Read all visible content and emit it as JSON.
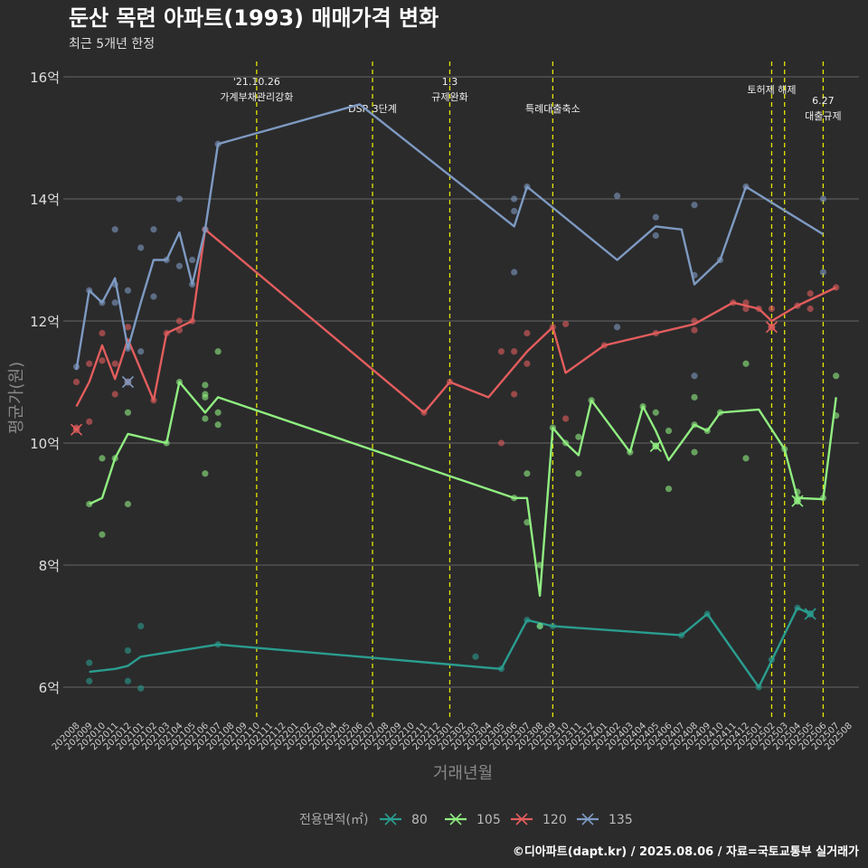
{
  "chart_data": {
    "type": "line",
    "title": "둔산 목련 아파트(1993) 매매가격 변화",
    "subtitle": "최근 5개년 한정",
    "xlabel": "거래년월",
    "ylabel": "평균가(원)",
    "caption": "©디아파트(dapt.kr) / 2025.08.06 / 자료=국토교통부 실거래가",
    "ylim": [
      5.5,
      16.2
    ],
    "y_ticks": [
      6,
      8,
      10,
      12,
      14,
      16
    ],
    "y_tick_labels": [
      "6억",
      "8억",
      "10억",
      "12억",
      "14억",
      "16억"
    ],
    "x_start": "202008",
    "x_end": "202508",
    "legend": {
      "title": "전용면적(㎡)",
      "position": "bottom"
    },
    "events": [
      {
        "month": "202110",
        "lines": [
          "'21.10.26",
          "가계부채관리강화"
        ],
        "level": 0
      },
      {
        "month": "202207",
        "lines": [
          "",
          "DSR 3단계"
        ],
        "level": 1
      },
      {
        "month": "202301",
        "lines": [
          "1.3",
          "규제완화"
        ],
        "level": 0
      },
      {
        "month": "202309",
        "lines": [
          "",
          "특례대출축소"
        ],
        "level": 1
      },
      {
        "month": "202502",
        "lines": [
          "토허제 해제"
        ],
        "level": 2
      },
      {
        "month": "202503",
        "lines": [],
        "level": 2
      },
      {
        "month": "202506",
        "lines": [
          "6.27",
          "대출규제"
        ],
        "level": 3
      }
    ],
    "series": [
      {
        "name": "80",
        "color": "#2a9d8f",
        "line": [
          [
            "202009",
            6.25
          ],
          [
            "202011",
            6.3
          ],
          [
            "202012",
            6.35
          ],
          [
            "202101",
            6.5
          ],
          [
            "202107",
            6.7
          ],
          [
            "202305",
            6.3
          ],
          [
            "202307",
            7.1
          ],
          [
            "202309",
            7.0
          ],
          [
            "202407",
            6.85
          ],
          [
            "202409",
            7.2
          ],
          [
            "202501",
            6.0
          ],
          [
            "202504",
            7.3
          ],
          [
            "202505",
            7.2
          ]
        ],
        "points": [
          [
            "202009",
            6.4
          ],
          [
            "202009",
            6.1
          ],
          [
            "202012",
            6.6
          ],
          [
            "202012",
            6.1
          ],
          [
            "202101",
            7.0
          ],
          [
            "202101",
            5.98
          ],
          [
            "202107",
            6.7
          ],
          [
            "202303",
            6.5
          ],
          [
            "202305",
            6.3
          ],
          [
            "202307",
            7.1
          ],
          [
            "202308",
            7.0
          ],
          [
            "202309",
            7.0
          ],
          [
            "202407",
            6.85
          ],
          [
            "202409",
            7.2
          ],
          [
            "202501",
            6.0
          ],
          [
            "202502",
            6.45
          ],
          [
            "202504",
            7.3
          ],
          [
            "202505",
            7.2
          ]
        ],
        "cross": [
          [
            "202505",
            7.2
          ]
        ]
      },
      {
        "name": "105",
        "color": "#90ee80",
        "line": [
          [
            "202009",
            9.0
          ],
          [
            "202010",
            9.1
          ],
          [
            "202011",
            9.75
          ],
          [
            "202012",
            10.15
          ],
          [
            "202103",
            10.0
          ],
          [
            "202104",
            11.0
          ],
          [
            "202106",
            10.5
          ],
          [
            "202107",
            10.75
          ],
          [
            "202306",
            9.1
          ],
          [
            "202307",
            9.1
          ],
          [
            "202308",
            7.5
          ],
          [
            "202309",
            10.25
          ],
          [
            "202310",
            10.0
          ],
          [
            "202311",
            9.8
          ],
          [
            "202312",
            10.7
          ],
          [
            "202403",
            9.85
          ],
          [
            "202404",
            10.6
          ],
          [
            "202405",
            10.2
          ],
          [
            "202406",
            9.72
          ],
          [
            "202408",
            10.3
          ],
          [
            "202409",
            10.2
          ],
          [
            "202410",
            10.5
          ],
          [
            "202501",
            10.55
          ],
          [
            "202503",
            9.9
          ],
          [
            "202504",
            9.1
          ],
          [
            "202506",
            9.08
          ],
          [
            "202507",
            10.75
          ]
        ],
        "points": [
          [
            "202009",
            9.0
          ],
          [
            "202010",
            9.75
          ],
          [
            "202010",
            8.5
          ],
          [
            "202011",
            9.75
          ],
          [
            "202012",
            10.5
          ],
          [
            "202012",
            9.0
          ],
          [
            "202103",
            10.0
          ],
          [
            "202104",
            11.0
          ],
          [
            "202106",
            10.95
          ],
          [
            "202106",
            10.8
          ],
          [
            "202106",
            10.75
          ],
          [
            "202106",
            10.4
          ],
          [
            "202106",
            9.5
          ],
          [
            "202107",
            11.5
          ],
          [
            "202107",
            10.5
          ],
          [
            "202107",
            10.3
          ],
          [
            "202306",
            9.1
          ],
          [
            "202307",
            9.5
          ],
          [
            "202307",
            8.7
          ],
          [
            "202308",
            8.0
          ],
          [
            "202308",
            7.0
          ],
          [
            "202309",
            10.25
          ],
          [
            "202310",
            10.0
          ],
          [
            "202311",
            10.1
          ],
          [
            "202311",
            9.5
          ],
          [
            "202312",
            10.7
          ],
          [
            "202403",
            9.85
          ],
          [
            "202404",
            10.6
          ],
          [
            "202405",
            10.5
          ],
          [
            "202405",
            9.95
          ],
          [
            "202406",
            10.2
          ],
          [
            "202406",
            9.25
          ],
          [
            "202408",
            10.75
          ],
          [
            "202408",
            10.3
          ],
          [
            "202408",
            9.85
          ],
          [
            "202409",
            10.2
          ],
          [
            "202410",
            10.5
          ],
          [
            "202412",
            11.3
          ],
          [
            "202412",
            9.75
          ],
          [
            "202503",
            9.9
          ],
          [
            "202504",
            9.2
          ],
          [
            "202504",
            9.1
          ],
          [
            "202504",
            9.05
          ],
          [
            "202506",
            9.1
          ],
          [
            "202507",
            11.1
          ],
          [
            "202507",
            10.45
          ]
        ],
        "cross": [
          [
            "202405",
            9.95
          ],
          [
            "202504",
            9.05
          ]
        ]
      },
      {
        "name": "120",
        "color": "#e35d5d",
        "line": [
          [
            "202008",
            10.6
          ],
          [
            "202009",
            11.0
          ],
          [
            "202010",
            11.6
          ],
          [
            "202011",
            11.05
          ],
          [
            "202012",
            11.7
          ],
          [
            "202102",
            10.7
          ],
          [
            "202103",
            11.8
          ],
          [
            "202104",
            11.9
          ],
          [
            "202105",
            12.0
          ],
          [
            "202106",
            13.5
          ],
          [
            "202211",
            10.5
          ],
          [
            "202301",
            11.0
          ],
          [
            "202304",
            10.75
          ],
          [
            "202307",
            11.5
          ],
          [
            "202309",
            11.9
          ],
          [
            "202310",
            11.15
          ],
          [
            "202401",
            11.6
          ],
          [
            "202405",
            11.8
          ],
          [
            "202408",
            11.95
          ],
          [
            "202411",
            12.3
          ],
          [
            "202412",
            12.25
          ],
          [
            "202501",
            12.2
          ],
          [
            "202502",
            12.0
          ],
          [
            "202504",
            12.25
          ],
          [
            "202507",
            12.55
          ]
        ],
        "points": [
          [
            "202008",
            11.0
          ],
          [
            "202008",
            10.25
          ],
          [
            "202009",
            11.3
          ],
          [
            "202009",
            10.35
          ],
          [
            "202010",
            11.8
          ],
          [
            "202010",
            11.35
          ],
          [
            "202011",
            11.3
          ],
          [
            "202011",
            10.8
          ],
          [
            "202012",
            11.9
          ],
          [
            "202012",
            11.0
          ],
          [
            "202102",
            10.7
          ],
          [
            "202103",
            11.8
          ],
          [
            "202104",
            12.0
          ],
          [
            "202104",
            11.85
          ],
          [
            "202105",
            12.0
          ],
          [
            "202106",
            13.5
          ],
          [
            "202211",
            10.5
          ],
          [
            "202301",
            11.0
          ],
          [
            "202305",
            11.5
          ],
          [
            "202305",
            10.0
          ],
          [
            "202306",
            11.5
          ],
          [
            "202306",
            10.8
          ],
          [
            "202307",
            11.8
          ],
          [
            "202307",
            11.3
          ],
          [
            "202309",
            11.9
          ],
          [
            "202310",
            11.95
          ],
          [
            "202310",
            10.4
          ],
          [
            "202401",
            11.6
          ],
          [
            "202405",
            11.8
          ],
          [
            "202408",
            12.0
          ],
          [
            "202408",
            11.85
          ],
          [
            "202411",
            12.3
          ],
          [
            "202412",
            12.3
          ],
          [
            "202412",
            12.2
          ],
          [
            "202501",
            12.2
          ],
          [
            "202502",
            12.2
          ],
          [
            "202502",
            11.9
          ],
          [
            "202504",
            12.25
          ],
          [
            "202505",
            12.45
          ],
          [
            "202505",
            12.2
          ],
          [
            "202507",
            12.55
          ]
        ],
        "cross": [
          [
            "202008",
            10.22
          ],
          [
            "202502",
            11.9
          ]
        ]
      },
      {
        "name": "135",
        "color": "#7e9ac2",
        "line": [
          [
            "202008",
            11.2
          ],
          [
            "202009",
            12.5
          ],
          [
            "202010",
            12.3
          ],
          [
            "202011",
            12.7
          ],
          [
            "202012",
            11.55
          ],
          [
            "202101",
            12.3
          ],
          [
            "202102",
            13.0
          ],
          [
            "202103",
            13.0
          ],
          [
            "202104",
            13.45
          ],
          [
            "202105",
            12.6
          ],
          [
            "202106",
            13.5
          ],
          [
            "202107",
            14.9
          ],
          [
            "202206",
            15.55
          ],
          [
            "202306",
            13.55
          ],
          [
            "202307",
            14.2
          ],
          [
            "202402",
            13.0
          ],
          [
            "202405",
            13.55
          ],
          [
            "202407",
            13.5
          ],
          [
            "202408",
            12.6
          ],
          [
            "202410",
            13.0
          ],
          [
            "202412",
            14.2
          ],
          [
            "202506",
            13.42
          ]
        ],
        "points": [
          [
            "202008",
            11.25
          ],
          [
            "202009",
            12.5
          ],
          [
            "202010",
            12.3
          ],
          [
            "202011",
            13.5
          ],
          [
            "202011",
            12.6
          ],
          [
            "202011",
            12.3
          ],
          [
            "202012",
            12.5
          ],
          [
            "202012",
            11.55
          ],
          [
            "202101",
            13.2
          ],
          [
            "202101",
            11.5
          ],
          [
            "202102",
            13.5
          ],
          [
            "202102",
            12.4
          ],
          [
            "202103",
            13.0
          ],
          [
            "202104",
            14.0
          ],
          [
            "202104",
            12.9
          ],
          [
            "202105",
            13.0
          ],
          [
            "202105",
            12.6
          ],
          [
            "202106",
            13.5
          ],
          [
            "202107",
            14.9
          ],
          [
            "202306",
            14.0
          ],
          [
            "202306",
            13.8
          ],
          [
            "202306",
            12.8
          ],
          [
            "202307",
            14.2
          ],
          [
            "202402",
            14.05
          ],
          [
            "202402",
            11.9
          ],
          [
            "202405",
            13.7
          ],
          [
            "202405",
            13.4
          ],
          [
            "202408",
            13.9
          ],
          [
            "202408",
            12.75
          ],
          [
            "202408",
            11.1
          ],
          [
            "202410",
            13.0
          ],
          [
            "202412",
            14.2
          ],
          [
            "202506",
            14.0
          ],
          [
            "202506",
            12.8
          ]
        ],
        "cross": [
          [
            "202012",
            11.0
          ]
        ]
      }
    ]
  }
}
